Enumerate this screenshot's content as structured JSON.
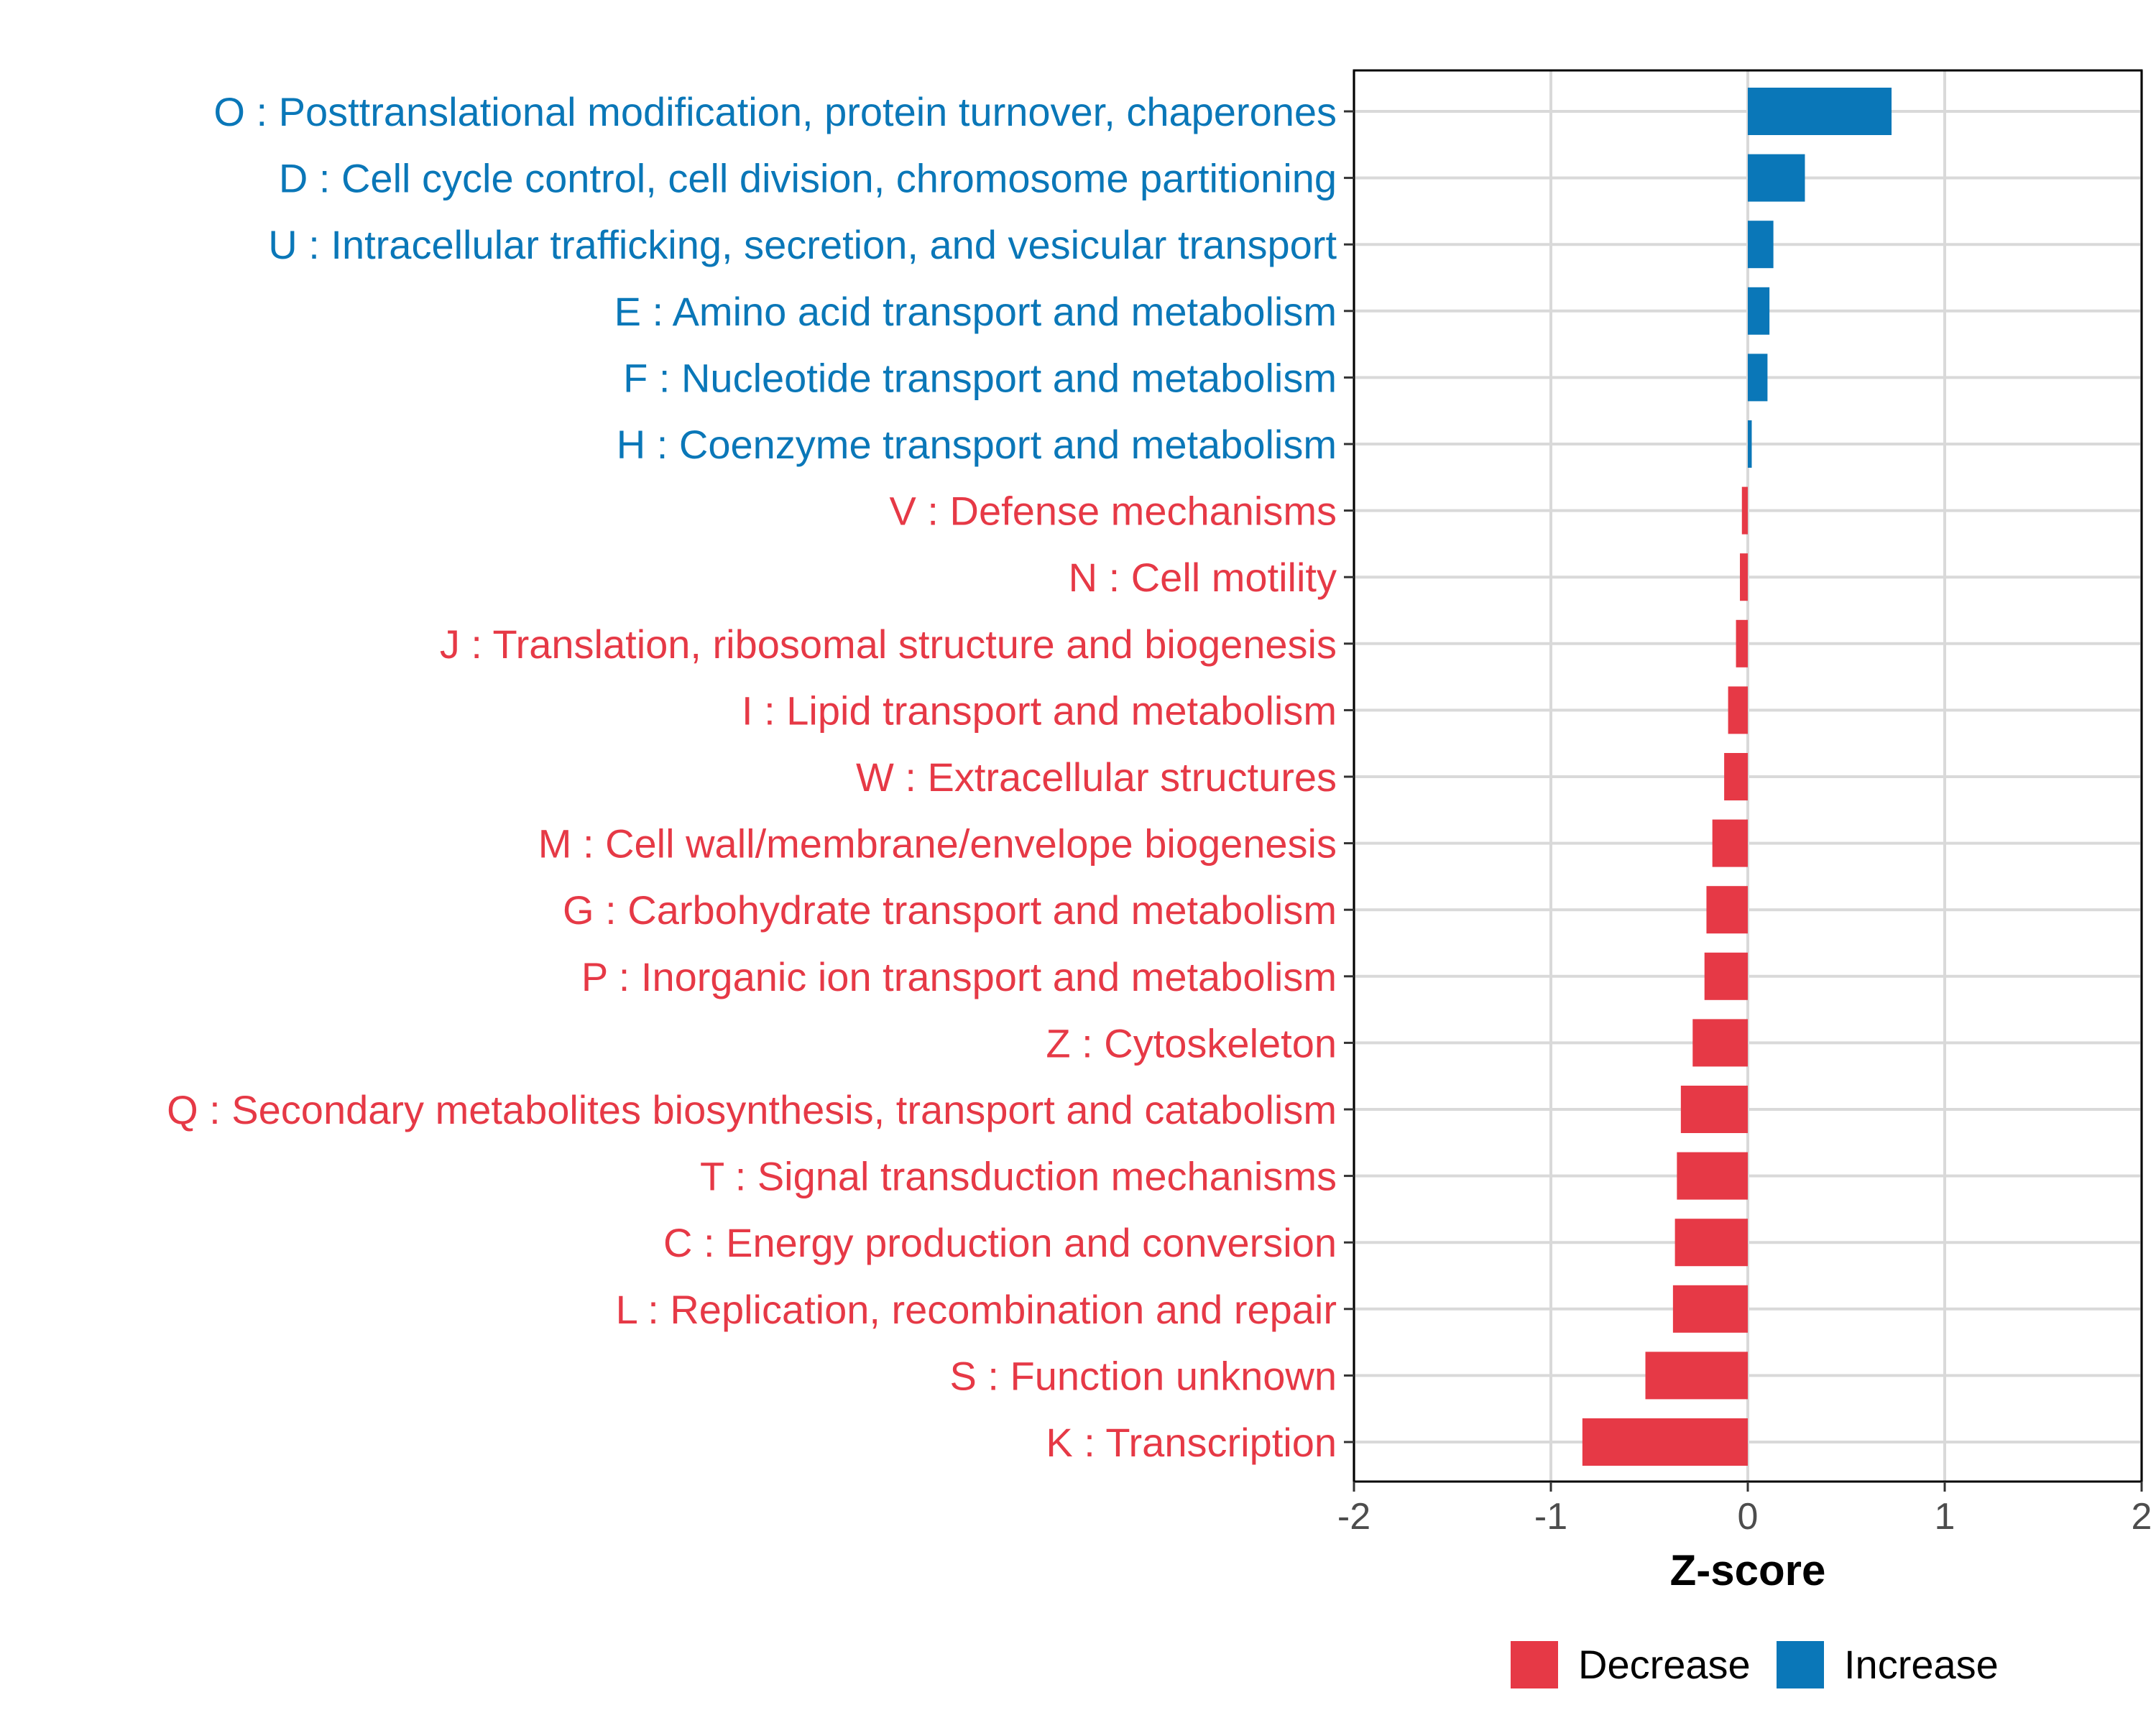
{
  "chart_data": {
    "type": "bar",
    "orientation": "horizontal",
    "xlabel": "Z-score",
    "xlim": [
      -2,
      2
    ],
    "x_ticks": [
      -2,
      -1,
      0,
      1,
      2
    ],
    "x_tick_labels": [
      "-2",
      "-1",
      "0",
      "1",
      "2"
    ],
    "grid": true,
    "legend_position": "bottom",
    "colors": {
      "Decrease": "#e63946",
      "Increase": "#0a77b8"
    },
    "legend": [
      {
        "label": "Decrease",
        "color": "#e63946"
      },
      {
        "label": "Increase",
        "color": "#0a77b8"
      }
    ],
    "bars": [
      {
        "label": "O : Posttranslational modification, protein turnover, chaperones",
        "value": 0.73,
        "group": "Increase"
      },
      {
        "label": "D : Cell cycle control, cell division, chromosome partitioning",
        "value": 0.29,
        "group": "Increase"
      },
      {
        "label": "U : Intracellular trafficking, secretion, and vesicular transport",
        "value": 0.13,
        "group": "Increase"
      },
      {
        "label": "E : Amino acid transport and metabolism",
        "value": 0.11,
        "group": "Increase"
      },
      {
        "label": "F : Nucleotide transport and metabolism",
        "value": 0.1,
        "group": "Increase"
      },
      {
        "label": "H : Coenzyme transport and metabolism",
        "value": 0.02,
        "group": "Increase"
      },
      {
        "label": "V : Defense mechanisms",
        "value": -0.03,
        "group": "Decrease"
      },
      {
        "label": "N : Cell motility",
        "value": -0.04,
        "group": "Decrease"
      },
      {
        "label": "J : Translation, ribosomal structure and biogenesis",
        "value": -0.06,
        "group": "Decrease"
      },
      {
        "label": "I : Lipid transport and metabolism",
        "value": -0.1,
        "group": "Decrease"
      },
      {
        "label": "W : Extracellular structures",
        "value": -0.12,
        "group": "Decrease"
      },
      {
        "label": "M : Cell wall/membrane/envelope biogenesis",
        "value": -0.18,
        "group": "Decrease"
      },
      {
        "label": "G : Carbohydrate transport and metabolism",
        "value": -0.21,
        "group": "Decrease"
      },
      {
        "label": "P : Inorganic ion transport and metabolism",
        "value": -0.22,
        "group": "Decrease"
      },
      {
        "label": "Z : Cytoskeleton",
        "value": -0.28,
        "group": "Decrease"
      },
      {
        "label": "Q : Secondary metabolites biosynthesis, transport and catabolism",
        "value": -0.34,
        "group": "Decrease"
      },
      {
        "label": "T : Signal transduction mechanisms",
        "value": -0.36,
        "group": "Decrease"
      },
      {
        "label": "C : Energy production and conversion",
        "value": -0.37,
        "group": "Decrease"
      },
      {
        "label": "L : Replication, recombination and repair",
        "value": -0.38,
        "group": "Decrease"
      },
      {
        "label": "S : Function unknown",
        "value": -0.52,
        "group": "Decrease"
      },
      {
        "label": "K : Transcription",
        "value": -0.84,
        "group": "Decrease"
      }
    ]
  }
}
